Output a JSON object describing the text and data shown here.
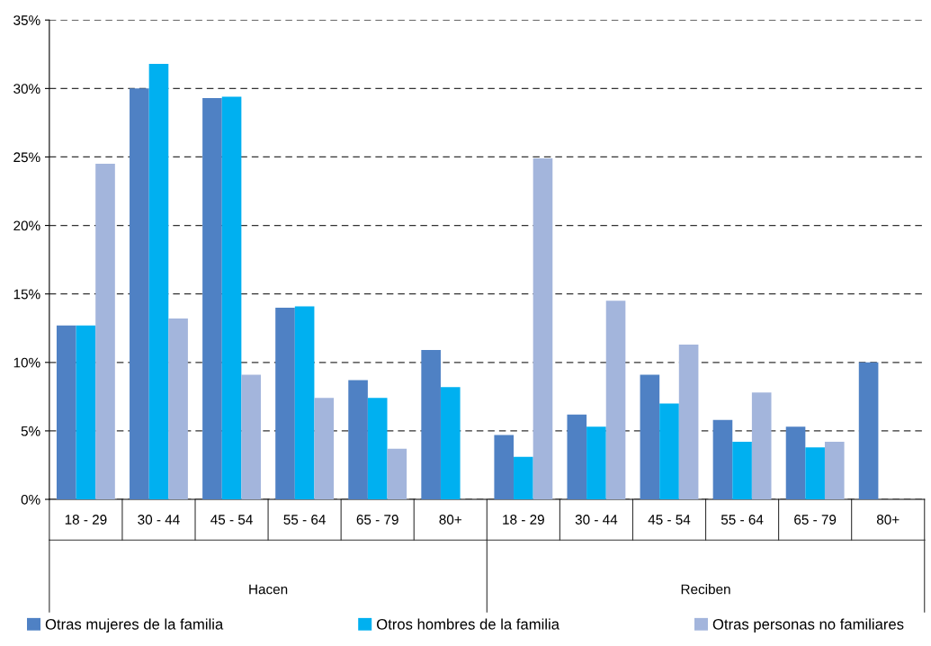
{
  "chart_data": {
    "type": "bar",
    "categories": [
      "18 - 29",
      "30 - 44",
      "45 - 54",
      "55 - 64",
      "65 - 79",
      "80+",
      "18 - 29",
      "30 - 44",
      "45 - 54",
      "55 - 64",
      "65 - 79",
      "80+"
    ],
    "series": [
      {
        "name": "Otras mujeres de la familia",
        "color": "#4f81c4",
        "values": [
          12.7,
          30.0,
          29.3,
          14.0,
          8.7,
          10.9,
          4.7,
          6.2,
          9.1,
          5.8,
          5.3,
          10.0
        ]
      },
      {
        "name": "Otros hombres de la familia",
        "color": "#00b0f0",
        "values": [
          12.7,
          31.8,
          29.4,
          14.1,
          7.4,
          8.2,
          3.1,
          5.3,
          7.0,
          4.2,
          3.8,
          null
        ]
      },
      {
        "name": "Otras personas no familiares",
        "color": "#a3b5dc",
        "values": [
          24.5,
          13.2,
          9.1,
          7.4,
          3.7,
          null,
          24.9,
          14.5,
          11.3,
          7.8,
          4.2,
          null
        ]
      }
    ],
    "annotations": [
      "Hacen",
      "Reciben"
    ],
    "ylim": [
      0,
      35
    ],
    "yticks": [
      {
        "value": 0,
        "label": "0%"
      },
      {
        "value": 5,
        "label": "5%"
      },
      {
        "value": 10,
        "label": "10%"
      },
      {
        "value": 15,
        "label": "15%"
      },
      {
        "value": 20,
        "label": "20%"
      },
      {
        "value": 25,
        "label": "25%"
      },
      {
        "value": 30,
        "label": "30%"
      },
      {
        "value": 35,
        "label": "35%"
      }
    ],
    "grid": "y",
    "legend": "bottom"
  }
}
